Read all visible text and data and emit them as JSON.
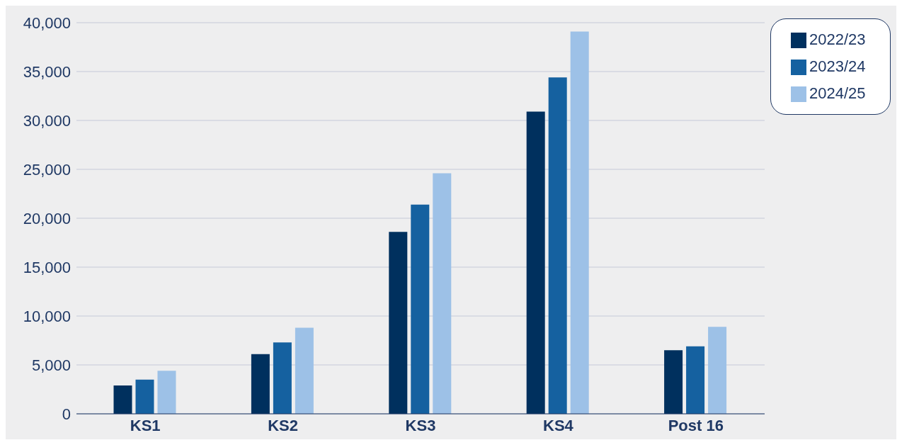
{
  "chart_data": {
    "type": "bar",
    "categories": [
      "KS1",
      "KS2",
      "KS3",
      "KS4",
      "Post 16"
    ],
    "series": [
      {
        "name": "2022/23",
        "color": "#00305e",
        "values": [
          2900,
          6100,
          18600,
          30900,
          6500
        ]
      },
      {
        "name": "2023/24",
        "color": "#1561a0",
        "values": [
          3500,
          7300,
          21400,
          34400,
          6900
        ]
      },
      {
        "name": "2024/25",
        "color": "#9dc1e7",
        "values": [
          4400,
          8800,
          24600,
          39100,
          8900
        ]
      }
    ],
    "ylim": [
      0,
      40000
    ],
    "yticks": [
      {
        "value": 0,
        "label": "0"
      },
      {
        "value": 5000,
        "label": "5,000"
      },
      {
        "value": 10000,
        "label": "10,000"
      },
      {
        "value": 15000,
        "label": "15,000"
      },
      {
        "value": 20000,
        "label": "20,000"
      },
      {
        "value": 25000,
        "label": "25,000"
      },
      {
        "value": 30000,
        "label": "30,000"
      },
      {
        "value": 35000,
        "label": "35,000"
      },
      {
        "value": 40000,
        "label": "40,000"
      }
    ],
    "grid": "y",
    "legend": "top right"
  }
}
